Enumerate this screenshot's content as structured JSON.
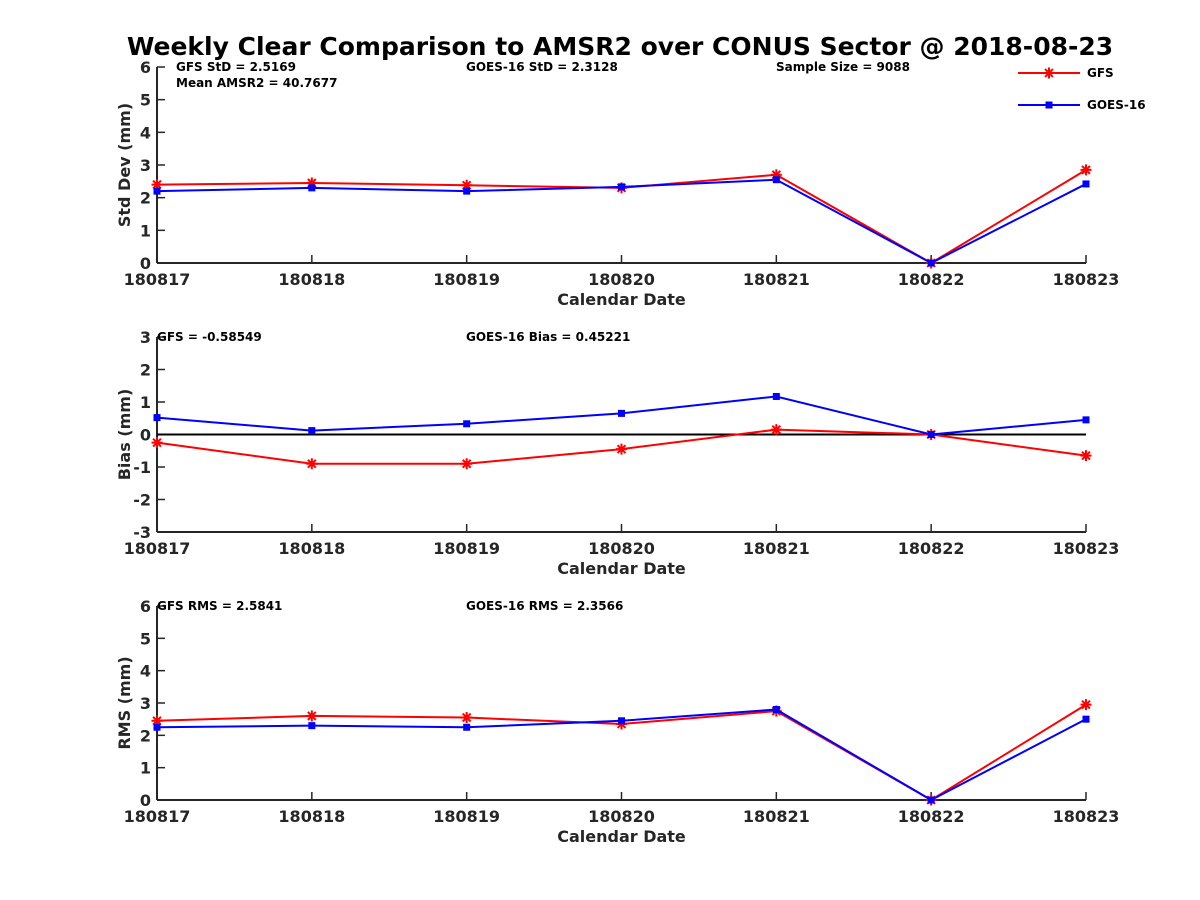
{
  "title": "Weekly Clear Comparison to AMSR2 over CONUS Sector @ 2018-08-23",
  "legend": {
    "entries": [
      {
        "label": "GFS",
        "color": "#ff0000",
        "marker": "asterisk"
      },
      {
        "label": "GOES-16",
        "color": "#0000ff",
        "marker": "square"
      }
    ]
  },
  "chart_data": [
    {
      "type": "line",
      "categories": [
        "180817",
        "180818",
        "180819",
        "180820",
        "180821",
        "180822",
        "180823"
      ],
      "xlabel": "Calendar Date",
      "ylabel": "Std Dev (mm)",
      "ylim": [
        0,
        6
      ],
      "yticks": [
        "0",
        "1",
        "2",
        "3",
        "4",
        "5",
        "6"
      ],
      "annotations": [
        "GFS StD = 2.5169",
        "Mean AMSR2 = 40.7677",
        "GOES-16 StD = 2.3128",
        "Sample Size = 9088"
      ],
      "series": [
        {
          "name": "GFS",
          "color": "#ff0000",
          "marker": "asterisk",
          "values": [
            2.4,
            2.45,
            2.38,
            2.3,
            2.7,
            0.0,
            2.85
          ]
        },
        {
          "name": "GOES-16",
          "color": "#0000ff",
          "marker": "square",
          "values": [
            2.2,
            2.3,
            2.2,
            2.33,
            2.55,
            0.0,
            2.42
          ]
        }
      ]
    },
    {
      "type": "line",
      "categories": [
        "180817",
        "180818",
        "180819",
        "180820",
        "180821",
        "180822",
        "180823"
      ],
      "xlabel": "Calendar Date",
      "ylabel": "Bias (mm)",
      "ylim": [
        -3,
        3
      ],
      "yticks": [
        "-3",
        "-2",
        "-1",
        "0",
        "1",
        "2",
        "3"
      ],
      "zero_line": true,
      "annotations": [
        "GFS = -0.58549",
        "GOES-16 Bias  = 0.45221"
      ],
      "series": [
        {
          "name": "GFS",
          "color": "#ff0000",
          "marker": "asterisk",
          "values": [
            -0.25,
            -0.9,
            -0.9,
            -0.45,
            0.15,
            0.0,
            -0.65
          ]
        },
        {
          "name": "GOES-16",
          "color": "#0000ff",
          "marker": "square",
          "values": [
            0.52,
            0.12,
            0.33,
            0.65,
            1.17,
            0.0,
            0.45
          ]
        }
      ]
    },
    {
      "type": "line",
      "categories": [
        "180817",
        "180818",
        "180819",
        "180820",
        "180821",
        "180822",
        "180823"
      ],
      "xlabel": "Calendar Date",
      "ylabel": "RMS (mm)",
      "ylim": [
        0,
        6
      ],
      "yticks": [
        "0",
        "1",
        "2",
        "3",
        "4",
        "5",
        "6"
      ],
      "annotations": [
        "GFS RMS = 2.5841",
        "GOES-16 RMS = 2.3566"
      ],
      "series": [
        {
          "name": "GFS",
          "color": "#ff0000",
          "marker": "asterisk",
          "values": [
            2.45,
            2.6,
            2.55,
            2.35,
            2.75,
            0.0,
            2.95
          ]
        },
        {
          "name": "GOES-16",
          "color": "#0000ff",
          "marker": "square",
          "values": [
            2.25,
            2.3,
            2.25,
            2.45,
            2.8,
            0.0,
            2.5
          ]
        }
      ]
    }
  ]
}
